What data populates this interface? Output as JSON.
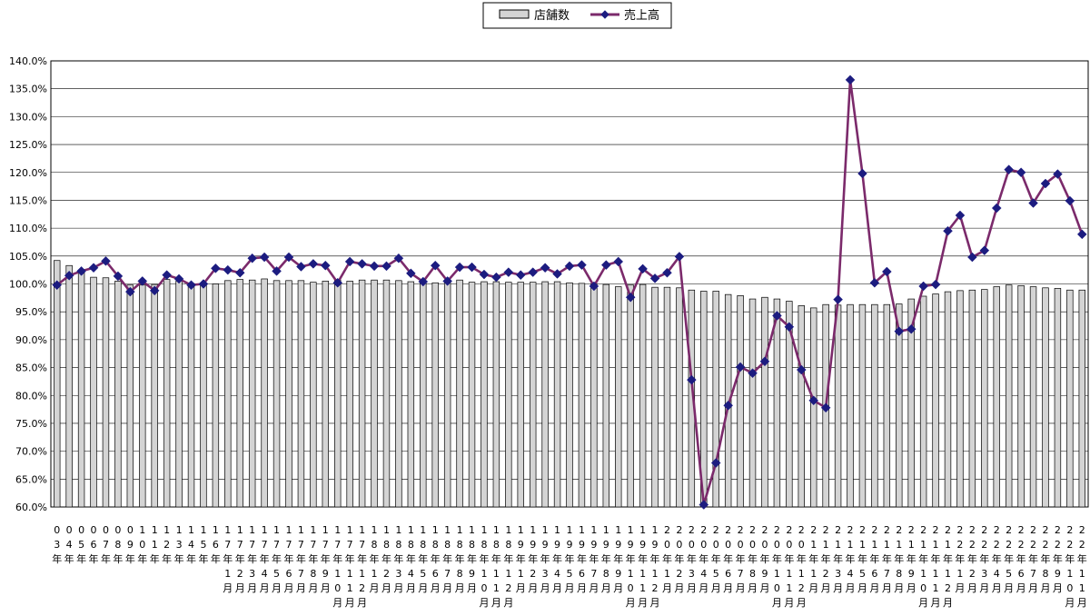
{
  "chart_data": {
    "type": "bar",
    "title": "",
    "xlabel": "",
    "ylabel": "",
    "ylim": [
      60,
      140
    ],
    "yticks": [
      60,
      65,
      70,
      75,
      80,
      85,
      90,
      95,
      100,
      105,
      110,
      115,
      120,
      125,
      130,
      135,
      140
    ],
    "ytick_labels": [
      "60.0%",
      "65.0%",
      "70.0%",
      "75.0%",
      "80.0%",
      "85.0%",
      "90.0%",
      "95.0%",
      "100.0%",
      "105.0%",
      "110.0%",
      "115.0%",
      "120.0%",
      "125.0%",
      "130.0%",
      "135.0%",
      "140.0%"
    ],
    "grid": true,
    "legend_position": "top-center",
    "categories": [
      "03年",
      "04年",
      "05年",
      "06年",
      "07年",
      "08年",
      "09年",
      "10年",
      "11年",
      "12年",
      "13年",
      "14年",
      "15年",
      "16年",
      "17年1月",
      "17年2月",
      "17年3月",
      "17年4月",
      "17年5月",
      "17年6月",
      "17年7月",
      "17年8月",
      "17年9月",
      "17年10月",
      "17年11月",
      "17年12月",
      "18年1月",
      "18年2月",
      "18年3月",
      "18年4月",
      "18年5月",
      "18年6月",
      "18年7月",
      "18年8月",
      "18年9月",
      "18年10月",
      "18年11月",
      "18年12月",
      "19年1月",
      "19年2月",
      "19年3月",
      "19年4月",
      "19年5月",
      "19年6月",
      "19年7月",
      "19年8月",
      "19年9月",
      "19年10月",
      "19年11月",
      "19年12月",
      "20年1月",
      "20年2月",
      "20年3月",
      "20年4月",
      "20年5月",
      "20年6月",
      "20年7月",
      "20年8月",
      "20年9月",
      "20年10月",
      "20年11月",
      "20年12月",
      "21年1月",
      "21年2月",
      "21年3月",
      "21年4月",
      "21年5月",
      "21年6月",
      "21年7月",
      "21年8月",
      "21年9月",
      "21年10月",
      "21年11月",
      "21年12月",
      "22年1月",
      "22年2月",
      "22年3月",
      "22年4月",
      "22年5月",
      "22年6月",
      "22年7月",
      "22年8月",
      "22年9月",
      "22年10月",
      "22年11月"
    ],
    "series": [
      {
        "name": "店舗数",
        "type": "bar",
        "color": "#d4d4d4",
        "values": [
          104.2,
          103.3,
          102.0,
          101.2,
          101.1,
          100.5,
          99.8,
          99.8,
          99.9,
          100.8,
          100.5,
          100.1,
          100.0,
          100.0,
          100.6,
          100.8,
          100.7,
          100.9,
          100.6,
          100.6,
          100.6,
          100.3,
          100.5,
          100.7,
          100.5,
          100.7,
          100.7,
          100.7,
          100.6,
          100.4,
          100.4,
          100.2,
          100.6,
          100.7,
          100.3,
          100.4,
          100.4,
          100.3,
          100.3,
          100.3,
          100.4,
          100.4,
          100.2,
          100.1,
          100.0,
          99.9,
          99.5,
          99.8,
          99.9,
          99.4,
          99.4,
          99.3,
          98.9,
          98.7,
          98.7,
          98.1,
          97.9,
          97.3,
          97.6,
          97.3,
          96.9,
          96.1,
          95.7,
          96.3,
          96.2,
          96.3,
          96.3,
          96.3,
          96.3,
          96.4,
          97.3,
          97.8,
          98.2,
          98.6,
          98.8,
          98.9,
          99.0,
          99.5,
          99.8,
          99.7,
          99.5,
          99.3,
          99.2,
          98.9,
          98.9
        ]
      },
      {
        "name": "売上高",
        "type": "line",
        "color": "#7b2a6b",
        "marker_color": "#1c1c80",
        "values": [
          99.8,
          101.5,
          102.3,
          102.9,
          104.1,
          101.4,
          98.6,
          100.5,
          98.8,
          101.6,
          100.9,
          99.8,
          100.0,
          102.8,
          102.5,
          102.0,
          104.6,
          104.8,
          102.3,
          104.8,
          103.1,
          103.6,
          103.3,
          100.2,
          104.0,
          103.6,
          103.2,
          103.2,
          104.6,
          101.9,
          100.4,
          103.3,
          100.5,
          103.0,
          103.0,
          101.7,
          101.2,
          102.1,
          101.6,
          102.1,
          102.9,
          101.8,
          103.2,
          103.4,
          99.6,
          103.4,
          104.0,
          97.6,
          102.7,
          101.0,
          102.0,
          104.9,
          82.8,
          60.4,
          67.9,
          78.2,
          85.1,
          84.0,
          86.1,
          94.3,
          92.3,
          84.6,
          79.1,
          77.8,
          97.2,
          136.6,
          119.8,
          100.2,
          102.2,
          91.5,
          91.9,
          99.6,
          99.9,
          109.5,
          112.3,
          104.8,
          106.0,
          113.6,
          120.5,
          120.0,
          114.5,
          118.0,
          119.7,
          114.9,
          108.9
        ]
      }
    ]
  }
}
